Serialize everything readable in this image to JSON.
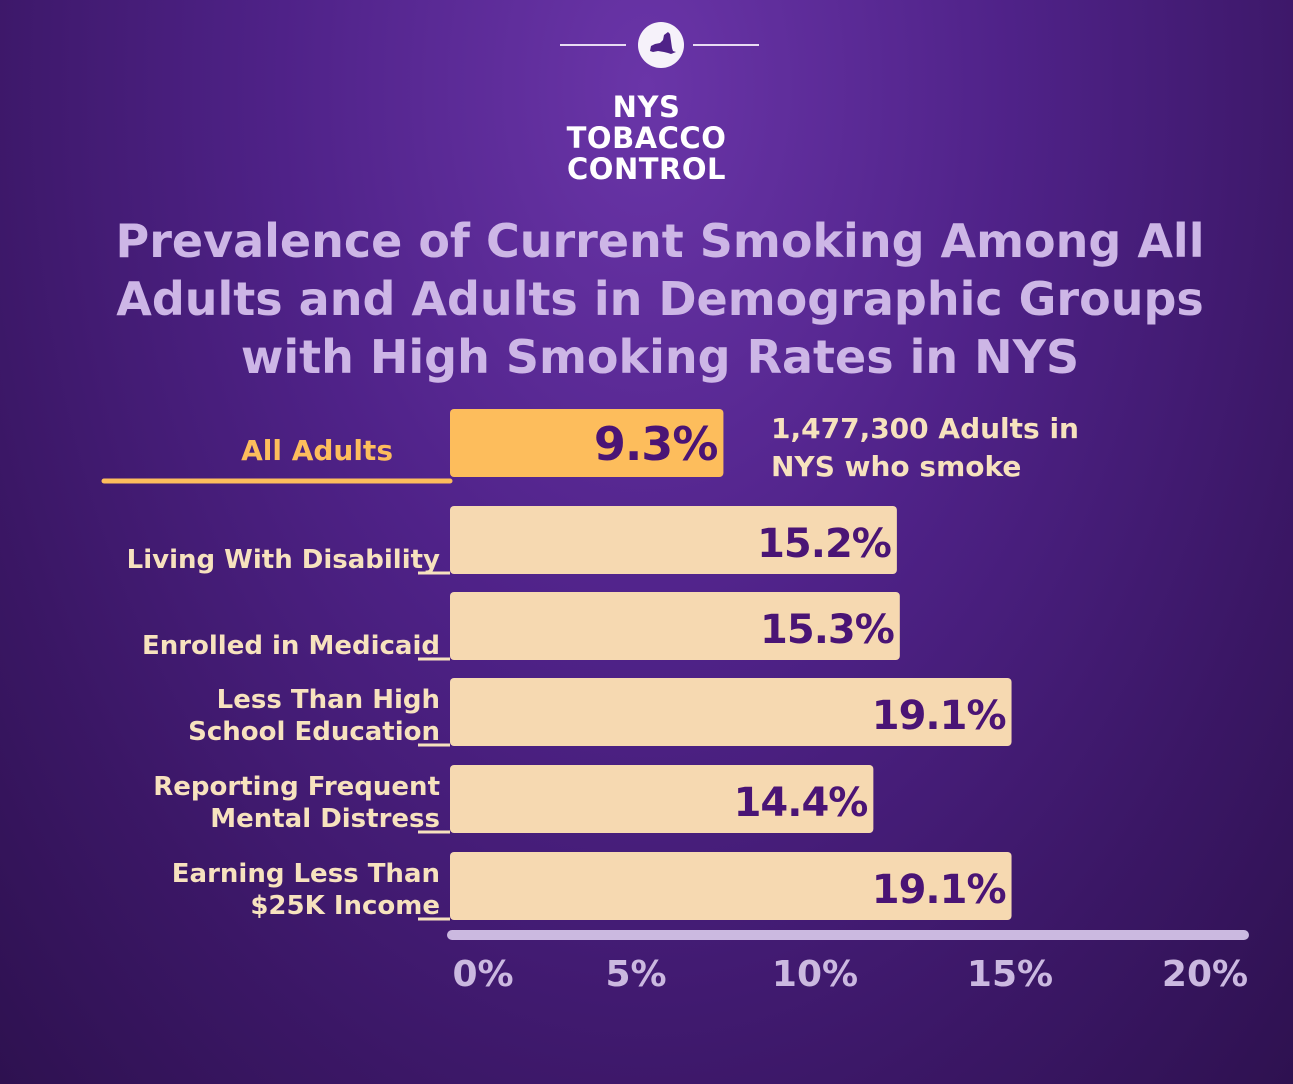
{
  "brand": {
    "logo_icon": "new-york-state-silhouette-icon",
    "lines": [
      "NYS",
      "TOBACCO",
      "CONTROL"
    ]
  },
  "colors": {
    "background": "#4a1f7e",
    "title": "#cdb6e6",
    "highlight_bar": "#fdbd5c",
    "bar": "#f6d9b1",
    "value_text": "#4a1475",
    "label_text": "#f7e2be",
    "highlight_label": "#fdbd5c",
    "axis": "#cbb9e0"
  },
  "chart_data": {
    "type": "bar",
    "orientation": "horizontal",
    "title": "Prevalence of Current Smoking Among All Adults and Adults in Demographic Groups with High Smoking Rates in NYS",
    "categories": [
      "All Adults",
      "Living With Disability",
      "Enrolled in Medicaid",
      "Less Than High School Education",
      "Reporting Frequent Mental Distress",
      "Earning Less Than $25K Income"
    ],
    "category_lines": [
      [
        "All Adults"
      ],
      [
        "Living With Disability"
      ],
      [
        "Enrolled in Medicaid"
      ],
      [
        "Less Than High",
        "School Education"
      ],
      [
        "Reporting Frequent",
        "Mental Distress"
      ],
      [
        "Earning Less Than",
        "$25K Income"
      ]
    ],
    "values": [
      9.3,
      15.2,
      15.3,
      19.1,
      14.4,
      19.1
    ],
    "value_labels": [
      "9.3%",
      "15.2%",
      "15.3%",
      "19.1%",
      "14.4%",
      "19.1%"
    ],
    "highlight_index": 0,
    "xlim": [
      0,
      20
    ],
    "xticks": [
      "0%",
      "5%",
      "10%",
      "15%",
      "20%"
    ],
    "annotation": [
      "1,477,300 Adults in",
      "NYS who smoke"
    ],
    "grid": false,
    "legend": "none"
  }
}
